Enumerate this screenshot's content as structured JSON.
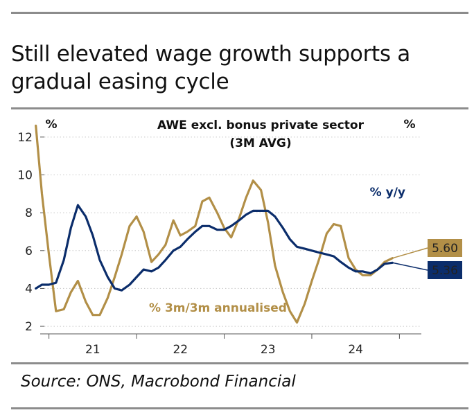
{
  "title": "Still elevated wage growth supports a gradual easing cycle",
  "source": "Source: ONS, Macrobond Financial",
  "chart_data": {
    "type": "line",
    "title_lines": [
      "AWE excl. bonus private sector",
      "(3M AVG)"
    ],
    "ylabel_left": "%",
    "ylabel_right": "%",
    "ylim": [
      1.6,
      12.8
    ],
    "yticks": [
      2,
      4,
      6,
      8,
      10,
      12
    ],
    "xlim": [
      2020.4,
      2024.75
    ],
    "xticks": [
      {
        "label": "21",
        "value": 2021.0
      },
      {
        "label": "22",
        "value": 2022.0
      },
      {
        "label": "23",
        "value": 2023.0
      },
      {
        "label": "24",
        "value": 2024.0
      }
    ],
    "year_separators": [
      2020.5,
      2021.5,
      2022.5,
      2023.5,
      2024.5
    ],
    "series": [
      {
        "name": "% y/y",
        "label": "% y/y",
        "color": "#0b2d6b",
        "end_label": "5.36",
        "end_value": 5.36,
        "x": [
          2020.35,
          2020.42,
          2020.5,
          2020.58,
          2020.67,
          2020.75,
          2020.83,
          2020.92,
          2021.0,
          2021.08,
          2021.17,
          2021.25,
          2021.33,
          2021.42,
          2021.5,
          2021.58,
          2021.67,
          2021.75,
          2021.83,
          2021.92,
          2022.0,
          2022.08,
          2022.17,
          2022.25,
          2022.33,
          2022.42,
          2022.5,
          2022.58,
          2022.67,
          2022.75,
          2022.83,
          2022.92,
          2023.0,
          2023.08,
          2023.17,
          2023.25,
          2023.33,
          2023.42,
          2023.5,
          2023.58,
          2023.67,
          2023.75,
          2023.83,
          2023.92,
          2024.0,
          2024.08,
          2024.17,
          2024.25,
          2024.33,
          2024.42
        ],
        "values": [
          4.0,
          4.2,
          4.2,
          4.3,
          5.5,
          7.2,
          8.4,
          7.8,
          6.8,
          5.5,
          4.6,
          4.0,
          3.9,
          4.2,
          4.6,
          5.0,
          4.9,
          5.1,
          5.5,
          6.0,
          6.2,
          6.6,
          7.0,
          7.3,
          7.3,
          7.1,
          7.1,
          7.3,
          7.6,
          7.9,
          8.1,
          8.1,
          8.1,
          7.8,
          7.2,
          6.6,
          6.2,
          6.1,
          6.0,
          5.9,
          5.8,
          5.7,
          5.4,
          5.1,
          4.9,
          4.9,
          4.8,
          5.0,
          5.3,
          5.36
        ]
      },
      {
        "name": "% 3m/3m annualised",
        "label": "% 3m/3m annualised",
        "color": "#b28f47",
        "end_label": "5.60",
        "end_value": 5.6,
        "x": [
          2020.35,
          2020.42,
          2020.5,
          2020.58,
          2020.67,
          2020.75,
          2020.83,
          2020.92,
          2021.0,
          2021.08,
          2021.17,
          2021.25,
          2021.33,
          2021.42,
          2021.5,
          2021.58,
          2021.67,
          2021.75,
          2021.83,
          2021.92,
          2022.0,
          2022.08,
          2022.17,
          2022.25,
          2022.33,
          2022.42,
          2022.5,
          2022.58,
          2022.67,
          2022.75,
          2022.83,
          2022.92,
          2023.0,
          2023.08,
          2023.17,
          2023.25,
          2023.33,
          2023.42,
          2023.5,
          2023.58,
          2023.67,
          2023.75,
          2023.83,
          2023.92,
          2024.0,
          2024.08,
          2024.17,
          2024.25,
          2024.33,
          2024.42
        ],
        "values": [
          12.6,
          9.0,
          5.8,
          2.8,
          2.9,
          3.8,
          4.4,
          3.3,
          2.6,
          2.6,
          3.5,
          4.6,
          5.8,
          7.3,
          7.8,
          7.0,
          5.4,
          5.8,
          6.3,
          7.6,
          6.8,
          7.0,
          7.3,
          8.6,
          8.8,
          8.0,
          7.2,
          6.7,
          7.7,
          8.8,
          9.7,
          9.2,
          7.5,
          5.2,
          3.8,
          2.8,
          2.2,
          3.2,
          4.4,
          5.5,
          6.9,
          7.4,
          7.3,
          5.6,
          5.0,
          4.7,
          4.7,
          5.0,
          5.4,
          5.6
        ]
      }
    ]
  }
}
